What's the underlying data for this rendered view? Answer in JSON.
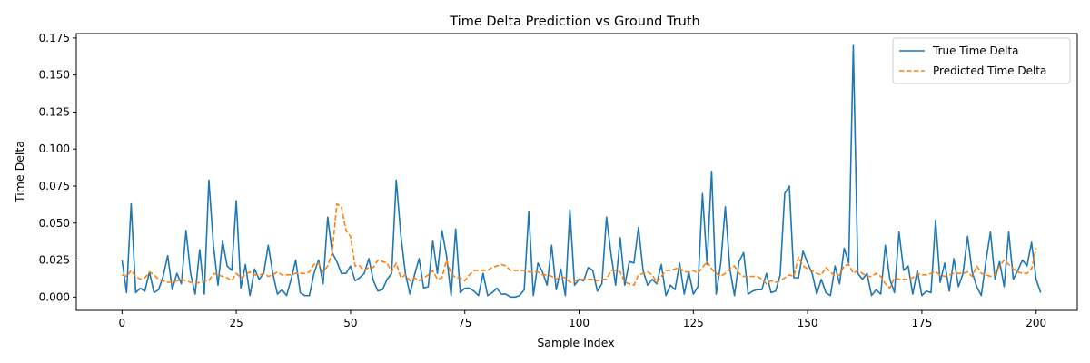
{
  "chart_data": {
    "type": "line",
    "title": "Time Delta Prediction vs Ground Truth",
    "xlabel": "Sample Index",
    "ylabel": "Time Delta",
    "xlim": [
      -10,
      209
    ],
    "ylim": [
      -0.009,
      0.178
    ],
    "xticks": [
      0,
      25,
      50,
      75,
      100,
      125,
      150,
      175,
      200
    ],
    "yticks": [
      0.0,
      0.025,
      0.05,
      0.075,
      0.1,
      0.125,
      0.15,
      0.175
    ],
    "ytick_labels": [
      "0.000",
      "0.025",
      "0.050",
      "0.075",
      "0.100",
      "0.125",
      "0.150",
      "0.175"
    ],
    "grid": false,
    "legend_position": "upper right",
    "series": [
      {
        "name": "True Time Delta",
        "color": "#1f77b4",
        "style": "solid",
        "values": [
          0.025,
          0.003,
          0.063,
          0.003,
          0.006,
          0.004,
          0.017,
          0.003,
          0.005,
          0.014,
          0.028,
          0.005,
          0.016,
          0.009,
          0.045,
          0.016,
          0.002,
          0.032,
          0.002,
          0.079,
          0.035,
          0.008,
          0.038,
          0.021,
          0.018,
          0.065,
          0.006,
          0.022,
          0.001,
          0.019,
          0.012,
          0.016,
          0.035,
          0.016,
          0.002,
          0.005,
          0.001,
          0.012,
          0.025,
          0.003,
          0.001,
          0.001,
          0.016,
          0.025,
          0.009,
          0.054,
          0.03,
          0.024,
          0.016,
          0.016,
          0.021,
          0.011,
          0.013,
          0.016,
          0.026,
          0.011,
          0.004,
          0.005,
          0.012,
          0.016,
          0.079,
          0.042,
          0.016,
          0.002,
          0.015,
          0.026,
          0.006,
          0.007,
          0.038,
          0.016,
          0.045,
          0.028,
          0.001,
          0.046,
          0.003,
          0.006,
          0.006,
          0.004,
          0.001,
          0.016,
          0.001,
          0.003,
          0.006,
          0.002,
          0.002,
          0.0,
          0.0,
          0.001,
          0.005,
          0.058,
          0.001,
          0.023,
          0.017,
          0.008,
          0.035,
          0.005,
          0.019,
          0.001,
          0.059,
          0.008,
          0.012,
          0.011,
          0.02,
          0.018,
          0.004,
          0.009,
          0.054,
          0.029,
          0.008,
          0.04,
          0.008,
          0.024,
          0.023,
          0.047,
          0.018,
          0.008,
          0.012,
          0.009,
          0.022,
          0.001,
          0.008,
          0.005,
          0.023,
          0.002,
          0.017,
          0.002,
          0.007,
          0.07,
          0.022,
          0.085,
          0.002,
          0.023,
          0.061,
          0.019,
          0.001,
          0.024,
          0.03,
          0.002,
          0.004,
          0.005,
          0.005,
          0.016,
          0.003,
          0.004,
          0.015,
          0.07,
          0.075,
          0.013,
          0.013,
          0.031,
          0.023,
          0.016,
          0.002,
          0.012,
          0.003,
          0.001,
          0.021,
          0.009,
          0.033,
          0.023,
          0.17,
          0.016,
          0.012,
          0.016,
          0.001,
          0.005,
          0.002,
          0.035,
          0.012,
          0.003,
          0.044,
          0.018,
          0.021,
          0.002,
          0.018,
          0.001,
          0.004,
          0.003,
          0.052,
          0.01,
          0.023,
          0.004,
          0.026,
          0.007,
          0.016,
          0.041,
          0.017,
          0.007,
          0.001,
          0.024,
          0.044,
          0.012,
          0.024,
          0.007,
          0.044,
          0.012,
          0.018,
          0.025,
          0.021,
          0.037,
          0.012,
          0.003
        ]
      },
      {
        "name": "Predicted Time Delta",
        "color": "#ff7f0e",
        "style": "dashed",
        "values": [
          0.015,
          0.014,
          0.018,
          0.014,
          0.012,
          0.013,
          0.017,
          0.015,
          0.012,
          0.011,
          0.01,
          0.01,
          0.011,
          0.012,
          0.011,
          0.01,
          0.009,
          0.01,
          0.011,
          0.011,
          0.016,
          0.015,
          0.014,
          0.013,
          0.011,
          0.016,
          0.013,
          0.015,
          0.017,
          0.015,
          0.015,
          0.016,
          0.014,
          0.015,
          0.017,
          0.015,
          0.015,
          0.015,
          0.016,
          0.016,
          0.016,
          0.017,
          0.022,
          0.023,
          0.017,
          0.021,
          0.03,
          0.063,
          0.061,
          0.045,
          0.041,
          0.021,
          0.021,
          0.018,
          0.02,
          0.02,
          0.025,
          0.024,
          0.023,
          0.017,
          0.023,
          0.013,
          0.015,
          0.011,
          0.013,
          0.011,
          0.013,
          0.015,
          0.018,
          0.012,
          0.013,
          0.025,
          0.016,
          0.013,
          0.013,
          0.011,
          0.015,
          0.018,
          0.018,
          0.018,
          0.018,
          0.02,
          0.021,
          0.022,
          0.021,
          0.018,
          0.018,
          0.018,
          0.018,
          0.017,
          0.017,
          0.017,
          0.015,
          0.015,
          0.014,
          0.012,
          0.014,
          0.013,
          0.01,
          0.011,
          0.012,
          0.012,
          0.012,
          0.012,
          0.011,
          0.012,
          0.012,
          0.018,
          0.018,
          0.017,
          0.01,
          0.009,
          0.008,
          0.015,
          0.016,
          0.017,
          0.015,
          0.01,
          0.014,
          0.018,
          0.018,
          0.019,
          0.02,
          0.017,
          0.017,
          0.018,
          0.016,
          0.02,
          0.024,
          0.019,
          0.016,
          0.014,
          0.016,
          0.019,
          0.021,
          0.016,
          0.014,
          0.014,
          0.014,
          0.014,
          0.012,
          0.009,
          0.011,
          0.01,
          0.011,
          0.013,
          0.015,
          0.014,
          0.027,
          0.021,
          0.019,
          0.018,
          0.016,
          0.015,
          0.02,
          0.017,
          0.014,
          0.015,
          0.021,
          0.022,
          0.016,
          0.018,
          0.016,
          0.014,
          0.014,
          0.016,
          0.014,
          0.009,
          0.006,
          0.013,
          0.012,
          0.012,
          0.012,
          0.013,
          0.016,
          0.015,
          0.015,
          0.016,
          0.017,
          0.015,
          0.014,
          0.015,
          0.016,
          0.016,
          0.016,
          0.017,
          0.014,
          0.021,
          0.016,
          0.015,
          0.014,
          0.015,
          0.021,
          0.025,
          0.022,
          0.019,
          0.017,
          0.016,
          0.016,
          0.019,
          0.033
        ]
      }
    ]
  }
}
